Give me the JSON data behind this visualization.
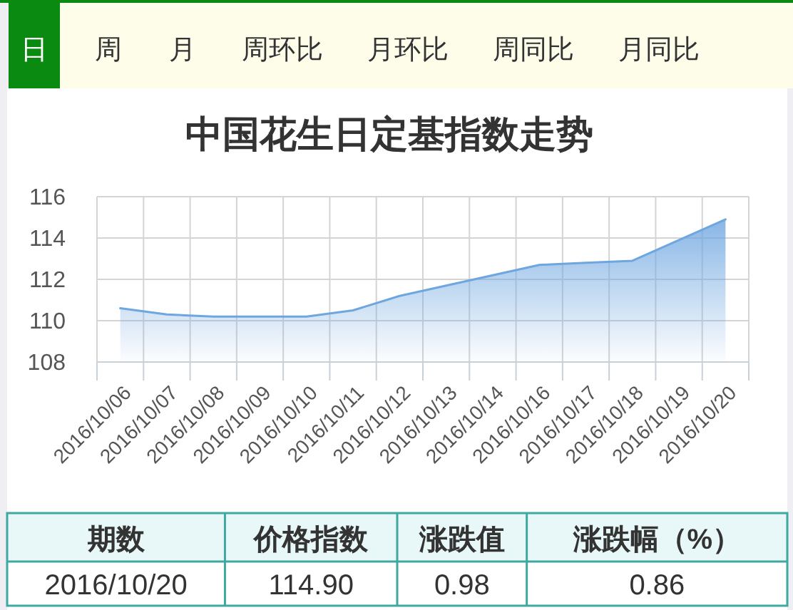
{
  "chart_data": [
    {
      "type": "other",
      "annotations": [
        "日",
        "周",
        "月",
        "周环比",
        "月环比",
        "周同比",
        "月同比"
      ]
    },
    {
      "type": "area",
      "title": "中国花生日定基指数走势",
      "categories": [
        "2016/10/06",
        "2016/10/07",
        "2016/10/08",
        "2016/10/09",
        "2016/10/10",
        "2016/10/11",
        "2016/10/12",
        "2016/10/13",
        "2016/10/14",
        "2016/10/16",
        "2016/10/17",
        "2016/10/18",
        "2016/10/19",
        "2016/10/20"
      ],
      "values": [
        110.6,
        110.3,
        110.2,
        110.2,
        110.2,
        110.5,
        111.2,
        111.7,
        112.2,
        112.7,
        112.8,
        112.9,
        113.9,
        114.9
      ],
      "color": "#6ea6e0",
      "ylim": [
        108,
        116
      ],
      "yticks": [
        108,
        110,
        112,
        114,
        116
      ],
      "grid": true
    },
    {
      "type": "other",
      "categories": [
        "期数",
        "价格指数",
        "涨跌值",
        "涨跌幅（%）"
      ],
      "annotations": [
        "2016/10/20",
        "114.90",
        "0.98",
        "0.86"
      ]
    }
  ]
}
